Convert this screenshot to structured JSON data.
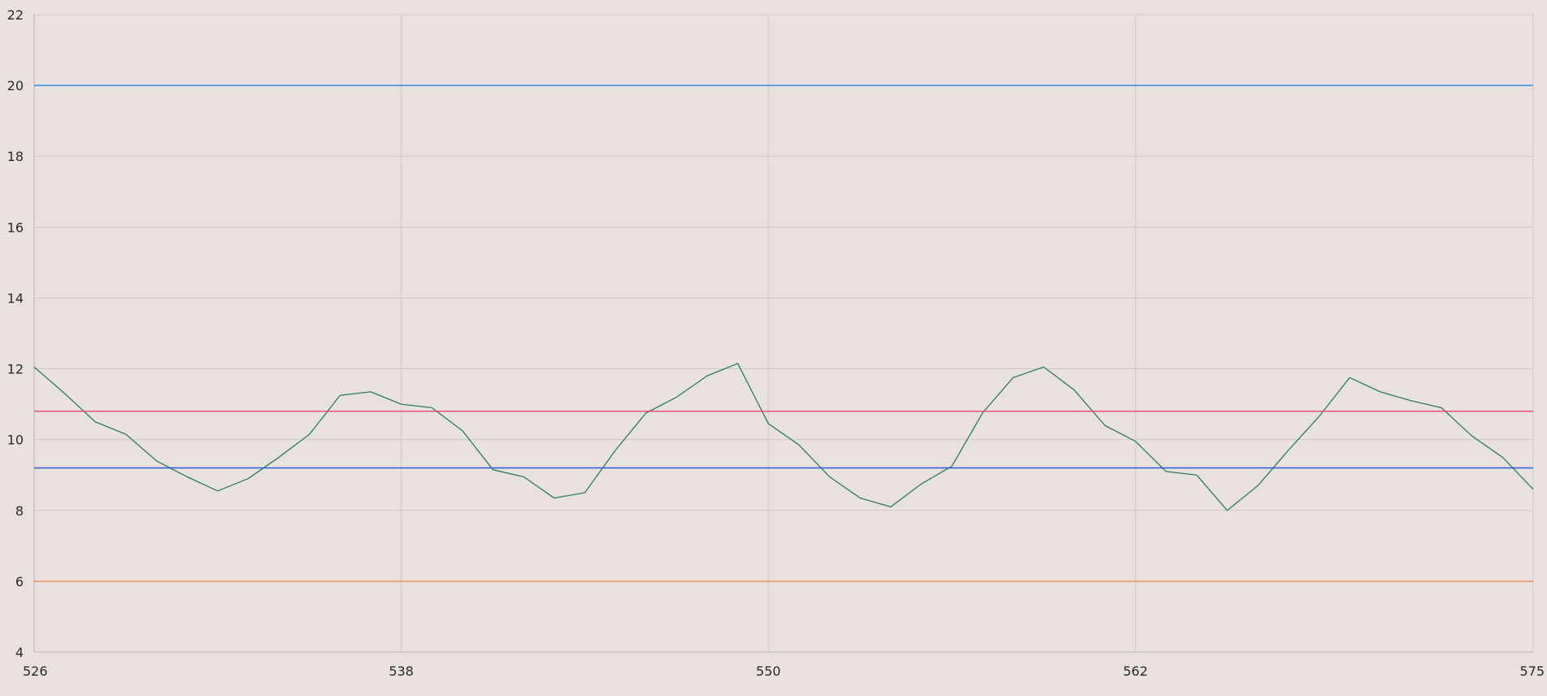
{
  "chart_data": {
    "type": "line",
    "title": "",
    "xlabel": "",
    "ylabel": "",
    "xlim": [
      526,
      575
    ],
    "ylim": [
      4,
      22
    ],
    "x_ticks": [
      526,
      538,
      550,
      562,
      575
    ],
    "y_ticks": [
      4,
      6,
      8,
      10,
      12,
      14,
      16,
      18,
      20,
      22
    ],
    "grid": true,
    "legend": "none",
    "colors": {
      "background": "#e8e1de",
      "grid": "#cfc9c6",
      "axis": "#bdb6b3",
      "signal": "#2e7d57",
      "upper_limit": "#1e88e5",
      "mean": "#e8426e",
      "center": "#2a5bd7",
      "lower_limit": "#f08a4b"
    },
    "series": [
      {
        "key": "signal",
        "x": [
          526,
          527,
          528,
          529,
          530,
          531,
          532,
          533,
          534,
          535,
          536,
          537,
          538,
          539,
          540,
          541,
          542,
          543,
          544,
          545,
          546,
          547,
          548,
          549,
          550,
          551,
          552,
          553,
          554,
          555,
          556,
          557,
          558,
          559,
          560,
          561,
          562,
          563,
          564,
          565,
          566,
          567,
          568,
          569,
          570,
          571,
          572,
          573,
          574,
          575
        ],
        "y": [
          12.05,
          11.3,
          10.5,
          10.15,
          9.4,
          8.95,
          8.55,
          8.9,
          9.5,
          10.15,
          11.25,
          11.35,
          11.0,
          10.9,
          10.25,
          9.15,
          8.95,
          8.35,
          8.5,
          9.7,
          10.75,
          11.2,
          11.8,
          12.15,
          10.45,
          9.85,
          8.95,
          8.35,
          8.1,
          8.75,
          9.25,
          10.75,
          11.75,
          12.05,
          11.4,
          10.4,
          9.95,
          9.1,
          9.0,
          8.0,
          8.7,
          9.7,
          10.65,
          11.75,
          11.35,
          11.1,
          10.9,
          10.1,
          9.5,
          8.6
        ]
      },
      {
        "key": "upper_limit",
        "x": [
          526,
          575
        ],
        "y": [
          20.0,
          20.0
        ]
      },
      {
        "key": "mean",
        "x": [
          526,
          575
        ],
        "y": [
          10.8,
          10.8
        ]
      },
      {
        "key": "center",
        "x": [
          526,
          575
        ],
        "y": [
          9.2,
          9.2
        ]
      },
      {
        "key": "lower_limit",
        "x": [
          526,
          575
        ],
        "y": [
          6.0,
          6.0
        ]
      }
    ]
  }
}
